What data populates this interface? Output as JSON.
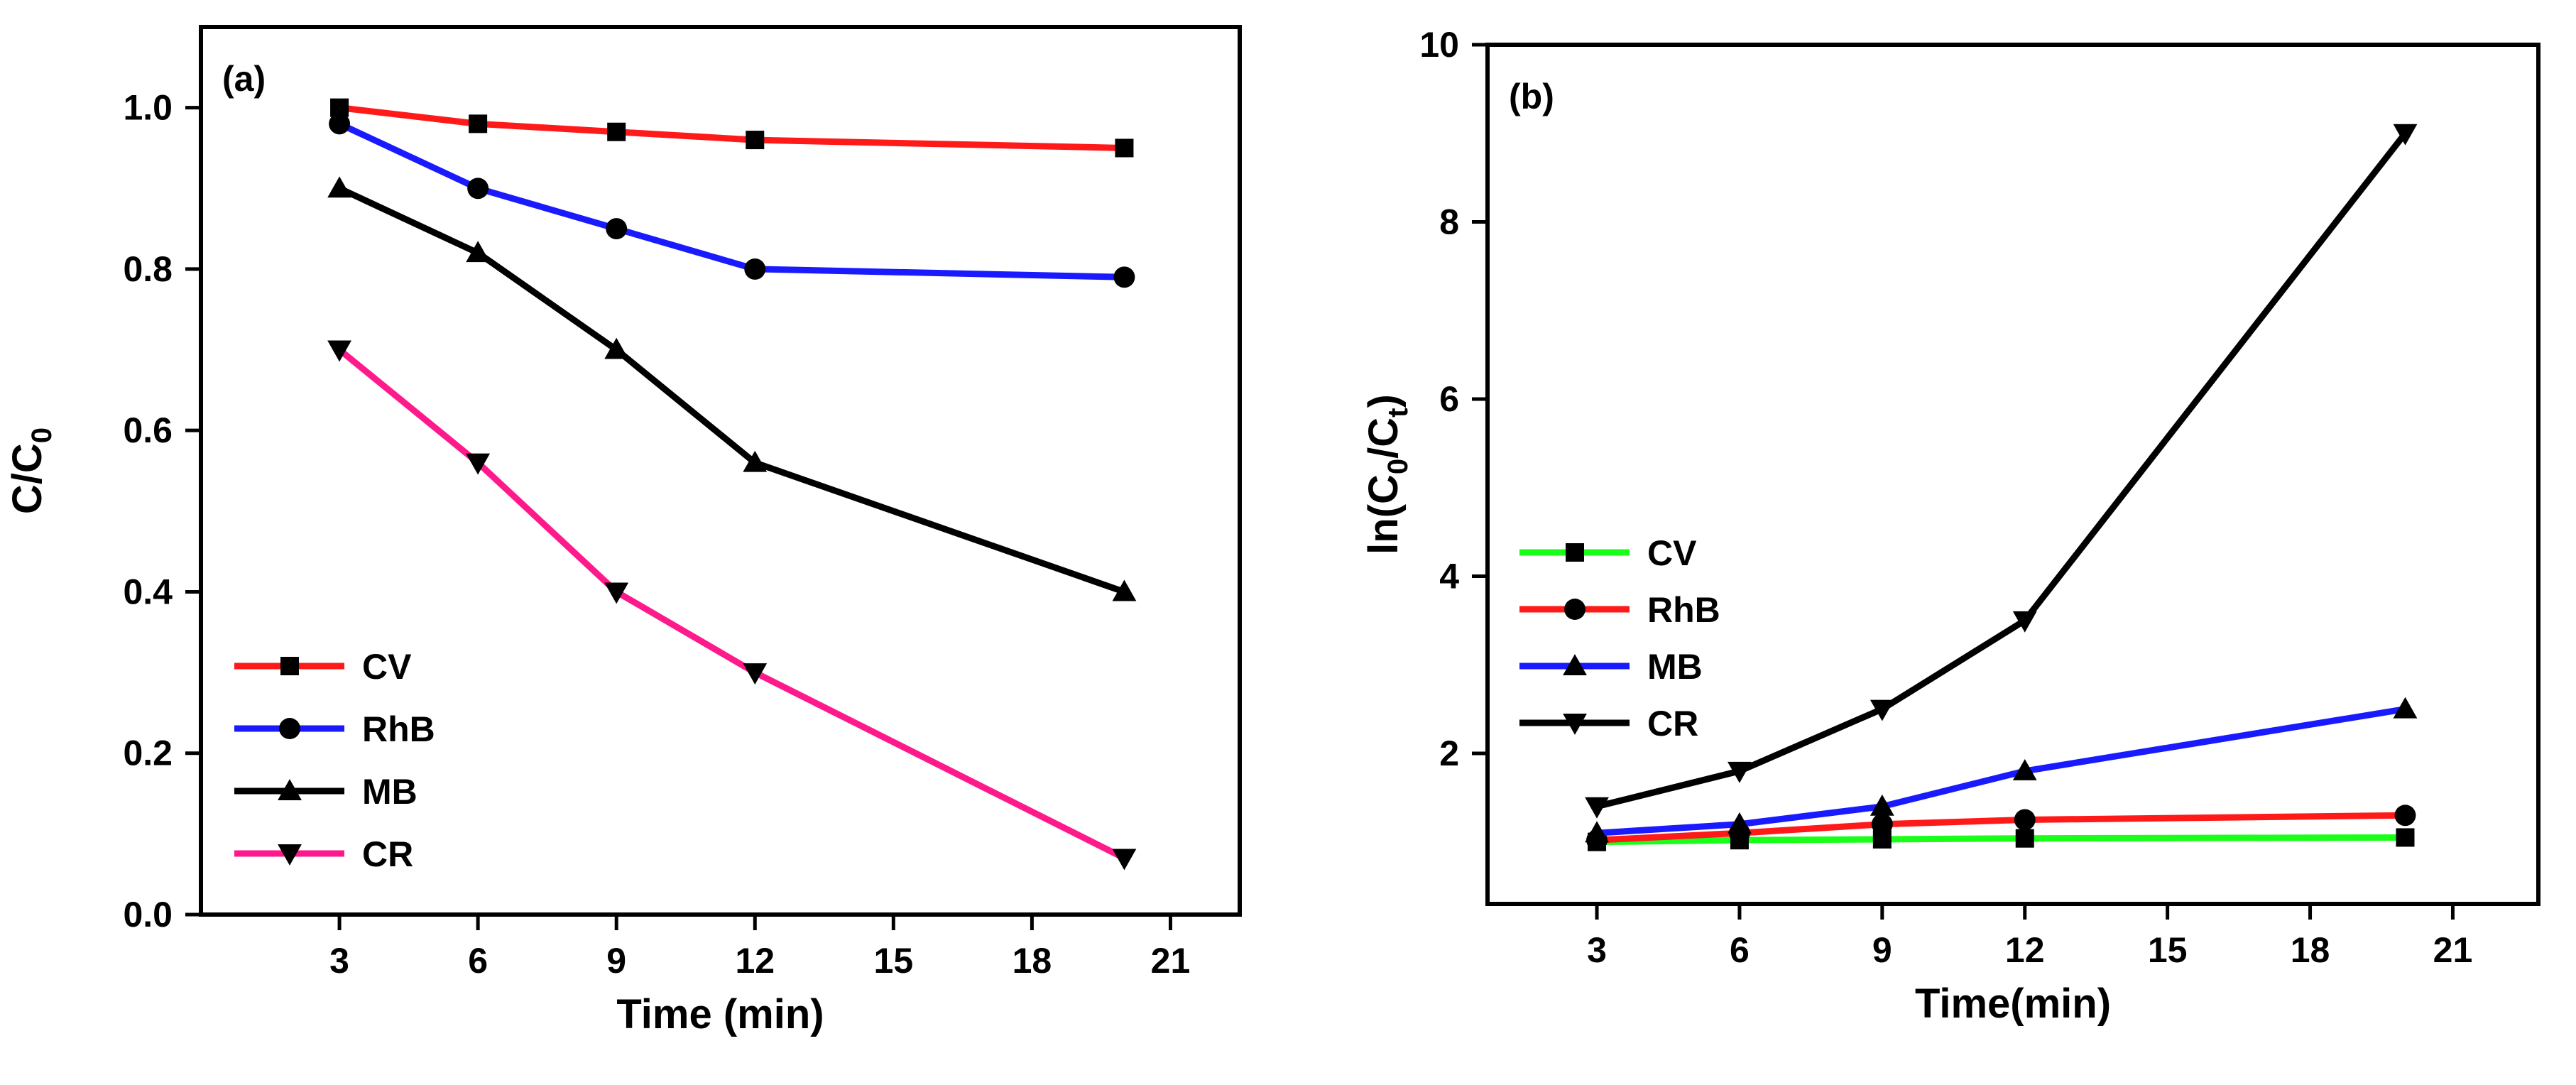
{
  "chart_data": [
    {
      "type": "line",
      "panel_label": "(a)",
      "xlabel": "Time (min)",
      "ylabel": "C/C",
      "ylabel_sub": "0",
      "xlim": [
        0,
        22.5
      ],
      "ylim": [
        0,
        1.1
      ],
      "xticks": [
        3,
        6,
        9,
        12,
        15,
        18,
        21
      ],
      "yticks": [
        0.0,
        0.2,
        0.4,
        0.6,
        0.8,
        1.0
      ],
      "ytick_labels": [
        "0.0",
        "0.2",
        "0.4",
        "0.6",
        "0.8",
        "1.0"
      ],
      "legend_position": "bottom-left",
      "x": [
        3,
        6,
        9,
        12,
        20
      ],
      "series": [
        {
          "name": "CV",
          "color": "#ff1a1a",
          "marker": "square",
          "values": [
            1.0,
            0.98,
            0.97,
            0.96,
            0.95
          ]
        },
        {
          "name": "RhB",
          "color": "#1a1aff",
          "marker": "circle",
          "values": [
            0.98,
            0.9,
            0.85,
            0.8,
            0.79
          ]
        },
        {
          "name": "MB",
          "color": "#000000",
          "marker": "triangle-up",
          "values": [
            0.9,
            0.82,
            0.7,
            0.56,
            0.4
          ]
        },
        {
          "name": "CR",
          "color": "#ff1a8c",
          "marker": "triangle-down",
          "values": [
            0.7,
            0.56,
            0.4,
            0.3,
            0.07
          ]
        }
      ]
    },
    {
      "type": "line",
      "panel_label": "(b)",
      "xlabel": "Time(min)",
      "ylabel_parts": [
        "ln(C",
        "0",
        "/C",
        "t",
        ")"
      ],
      "xlim": [
        0.7,
        22.8
      ],
      "ylim": [
        0.3,
        10
      ],
      "xticks": [
        3,
        6,
        9,
        12,
        15,
        18,
        21
      ],
      "yticks": [
        2,
        4,
        6,
        8,
        10
      ],
      "ytick_labels": [
        "2",
        "4",
        "6",
        "8",
        "10"
      ],
      "legend_position": "middle-left",
      "x": [
        3,
        6,
        9,
        12,
        20
      ],
      "series": [
        {
          "name": "CV",
          "color": "#1aff1a",
          "marker": "square",
          "values": [
            1.0,
            1.02,
            1.03,
            1.04,
            1.05
          ]
        },
        {
          "name": "RhB",
          "color": "#ff1a1a",
          "marker": "circle",
          "values": [
            1.02,
            1.1,
            1.2,
            1.25,
            1.3
          ]
        },
        {
          "name": "MB",
          "color": "#1a1aff",
          "marker": "triangle-up",
          "values": [
            1.1,
            1.2,
            1.4,
            1.8,
            2.5
          ]
        },
        {
          "name": "CR",
          "color": "#000000",
          "marker": "triangle-down",
          "values": [
            1.4,
            1.8,
            2.5,
            3.5,
            9.0
          ]
        }
      ]
    }
  ]
}
